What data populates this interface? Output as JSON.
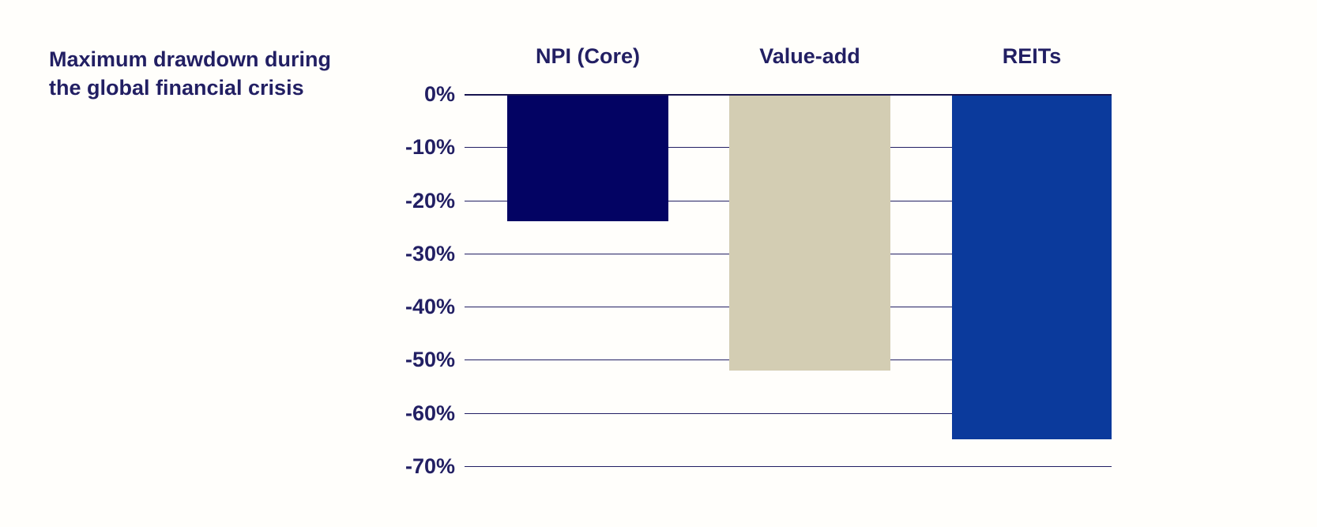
{
  "title": "Maximum drawdown during\nthe global financial crisis",
  "colors": {
    "text_navy": "#221f63",
    "gridline": "#221f63",
    "axis_line": "#17144f",
    "background": "#fffefb",
    "bar_npi_core": "#030363",
    "bar_value_add": "#d3cdb3",
    "bar_reits": "#0b3a9c"
  },
  "chart_data": {
    "type": "bar",
    "title": "Maximum drawdown during the global financial crisis",
    "categories": [
      "NPI (Core)",
      "Value-add",
      "REITs"
    ],
    "values": [
      -24,
      -52,
      -65
    ],
    "series": [
      {
        "name": "Maximum drawdown",
        "values": [
          -24,
          -52,
          -65
        ]
      }
    ],
    "xlabel": "",
    "ylabel": "",
    "ylim": [
      -70,
      0
    ],
    "yticks": [
      "0%",
      "-10%",
      "-20%",
      "-30%",
      "-40%",
      "-50%",
      "-60%",
      "-70%"
    ],
    "ytick_values": [
      0,
      -10,
      -20,
      -30,
      -40,
      -50,
      -60,
      -70
    ],
    "grid": true,
    "legend": false,
    "bar_colors": [
      "#030363",
      "#d3cdb3",
      "#0b3a9c"
    ],
    "category_label_position": "above-bars",
    "value_labels_shown": false
  }
}
